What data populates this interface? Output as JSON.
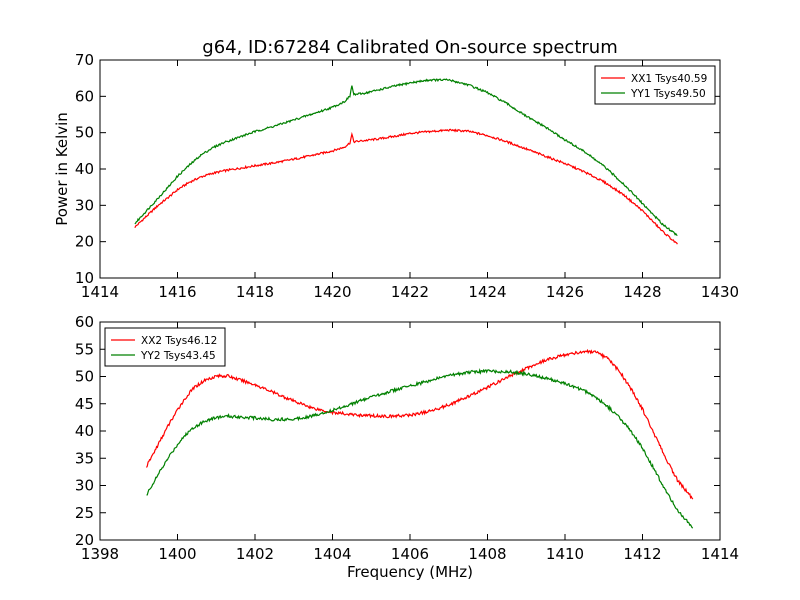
{
  "chart_data": [
    {
      "type": "line",
      "title": "g64, ID:67284 Calibrated On-source spectrum",
      "xlabel": "",
      "ylabel": "Power in Kelvin",
      "xlim": [
        1414,
        1430
      ],
      "ylim": [
        10,
        70
      ],
      "xticks": [
        1414,
        1416,
        1418,
        1420,
        1422,
        1424,
        1426,
        1428,
        1430
      ],
      "yticks": [
        10,
        20,
        30,
        40,
        50,
        60,
        70
      ],
      "grid": false,
      "legend_position": "top-right",
      "series": [
        {
          "name": "XX1 Tsys40.59",
          "color": "#ff0000",
          "x": [
            1414.9,
            1415.2,
            1415.5,
            1415.8,
            1416.0,
            1416.3,
            1416.6,
            1416.9,
            1417.2,
            1417.6,
            1418.0,
            1418.5,
            1419.0,
            1419.5,
            1420.0,
            1420.3,
            1420.45,
            1420.5,
            1420.55,
            1420.65,
            1420.8,
            1421.2,
            1421.6,
            1422.0,
            1422.5,
            1423.0,
            1423.5,
            1424.0,
            1424.5,
            1425.0,
            1425.5,
            1426.0,
            1426.5,
            1427.0,
            1427.5,
            1428.0,
            1428.5,
            1428.9
          ],
          "y": [
            24.0,
            27.0,
            30.0,
            32.5,
            34.3,
            36.3,
            37.8,
            38.8,
            39.5,
            40.2,
            40.9,
            41.7,
            42.7,
            43.8,
            45.0,
            46.0,
            47.2,
            49.5,
            47.5,
            47.6,
            47.8,
            48.3,
            49.0,
            49.8,
            50.3,
            50.7,
            50.4,
            49.2,
            47.5,
            45.5,
            43.5,
            41.5,
            39.2,
            36.5,
            33.0,
            28.5,
            23.0,
            19.3
          ]
        },
        {
          "name": "YY1 Tsys49.50",
          "color": "#008000",
          "x": [
            1414.9,
            1415.2,
            1415.5,
            1415.8,
            1416.0,
            1416.3,
            1416.6,
            1416.9,
            1417.2,
            1417.6,
            1418.0,
            1418.5,
            1419.0,
            1419.5,
            1420.0,
            1420.3,
            1420.45,
            1420.5,
            1420.55,
            1420.65,
            1420.8,
            1421.2,
            1421.6,
            1422.0,
            1422.5,
            1423.0,
            1423.5,
            1424.0,
            1424.5,
            1425.0,
            1425.5,
            1426.0,
            1426.5,
            1427.0,
            1427.5,
            1428.0,
            1428.5,
            1428.9
          ],
          "y": [
            25.0,
            28.5,
            32.0,
            35.5,
            38.0,
            41.0,
            43.8,
            45.8,
            47.3,
            48.8,
            50.3,
            51.8,
            53.5,
            55.2,
            57.0,
            58.5,
            60.0,
            63.0,
            60.5,
            60.6,
            60.8,
            61.8,
            62.8,
            63.7,
            64.5,
            64.5,
            63.2,
            61.0,
            58.0,
            54.5,
            51.5,
            48.0,
            44.8,
            40.8,
            36.0,
            30.5,
            25.0,
            21.7
          ]
        }
      ]
    },
    {
      "type": "line",
      "title": "",
      "xlabel": "Frequency (MHz)",
      "ylabel": "",
      "xlim": [
        1398,
        1414
      ],
      "ylim": [
        20,
        60
      ],
      "xticks": [
        1398,
        1400,
        1402,
        1404,
        1406,
        1408,
        1410,
        1412,
        1414
      ],
      "yticks": [
        20,
        25,
        30,
        35,
        40,
        45,
        50,
        55,
        60
      ],
      "grid": false,
      "legend_position": "top-left",
      "series": [
        {
          "name": "XX2 Tsys46.12",
          "color": "#ff0000",
          "x": [
            1399.2,
            1399.5,
            1399.8,
            1400.1,
            1400.4,
            1400.7,
            1401.0,
            1401.3,
            1401.6,
            1402.0,
            1402.5,
            1403.0,
            1403.5,
            1404.0,
            1404.5,
            1405.0,
            1405.5,
            1406.0,
            1406.5,
            1407.0,
            1407.5,
            1408.0,
            1408.5,
            1409.0,
            1409.5,
            1410.0,
            1410.5,
            1410.8,
            1411.1,
            1411.4,
            1411.7,
            1412.0,
            1412.3,
            1412.6,
            1412.9,
            1413.3
          ],
          "y": [
            33.5,
            37.5,
            41.5,
            45.0,
            47.8,
            49.3,
            50.1,
            50.1,
            49.4,
            48.5,
            47.0,
            45.5,
            44.2,
            43.4,
            43.0,
            42.8,
            42.7,
            42.9,
            43.6,
            44.8,
            46.3,
            48.0,
            49.8,
            51.5,
            53.0,
            54.0,
            54.6,
            54.4,
            53.3,
            51.0,
            47.8,
            44.0,
            39.5,
            35.0,
            31.0,
            27.5
          ]
        },
        {
          "name": "YY2 Tsys43.45",
          "color": "#008000",
          "x": [
            1399.2,
            1399.5,
            1399.8,
            1400.1,
            1400.4,
            1400.7,
            1401.0,
            1401.3,
            1401.6,
            1402.0,
            1402.5,
            1403.0,
            1403.5,
            1404.0,
            1404.5,
            1405.0,
            1405.5,
            1406.0,
            1406.5,
            1407.0,
            1407.5,
            1408.0,
            1408.5,
            1409.0,
            1409.5,
            1410.0,
            1410.5,
            1410.8,
            1411.1,
            1411.4,
            1411.7,
            1412.0,
            1412.3,
            1412.6,
            1412.9,
            1413.3
          ],
          "y": [
            28.3,
            32.0,
            35.5,
            38.5,
            40.6,
            41.8,
            42.5,
            42.7,
            42.6,
            42.4,
            42.1,
            42.2,
            42.8,
            43.8,
            45.0,
            46.2,
            47.3,
            48.3,
            49.2,
            50.2,
            50.8,
            51.0,
            50.9,
            50.5,
            49.7,
            48.7,
            47.4,
            46.2,
            44.5,
            42.5,
            40.0,
            36.8,
            33.0,
            29.0,
            25.5,
            22.2
          ]
        }
      ]
    }
  ]
}
